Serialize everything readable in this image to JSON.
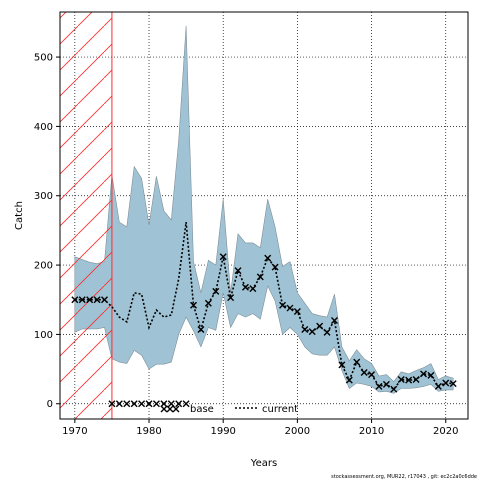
{
  "chart_data": {
    "type": "line",
    "xlabel": "Years",
    "ylabel": "Catch",
    "xlim": [
      1968,
      2023
    ],
    "ylim": [
      -22,
      565
    ],
    "x_ticks": [
      1970,
      1980,
      1990,
      2000,
      2010,
      2020
    ],
    "y_ticks": [
      0,
      100,
      200,
      300,
      400,
      500
    ],
    "grid": true,
    "legend_placement": "bottom-center",
    "shaded_period": [
      1968,
      1975
    ],
    "colors": {
      "band_fill": "#9fc3d4",
      "band_edge": "#7f8f99",
      "line": "#000000",
      "hatch": "#ff2a2a"
    },
    "band": {
      "x": [
        1970,
        1971,
        1972,
        1973,
        1974,
        1975,
        1976,
        1977,
        1978,
        1979,
        1980,
        1981,
        1982,
        1983,
        1984,
        1985,
        1986,
        1987,
        1988,
        1989,
        1990,
        1991,
        1992,
        1993,
        1994,
        1995,
        1996,
        1997,
        1998,
        1999,
        2000,
        2001,
        2002,
        2003,
        2004,
        2005,
        2006,
        2007,
        2008,
        2009,
        2010,
        2011,
        2012,
        2013,
        2014,
        2015,
        2016,
        2017,
        2018,
        2019,
        2020,
        2021
      ],
      "upper": [
        212,
        208,
        204,
        202,
        205,
        330,
        262,
        255,
        342,
        325,
        258,
        328,
        278,
        265,
        380,
        545,
        205,
        160,
        207,
        200,
        295,
        160,
        245,
        232,
        232,
        225,
        295,
        255,
        198,
        205,
        160,
        145,
        130,
        127,
        125,
        158,
        82,
        62,
        78,
        65,
        58,
        40,
        42,
        32,
        46,
        43,
        48,
        52,
        58,
        35,
        40,
        37
      ],
      "lower": [
        103,
        108,
        108,
        108,
        110,
        65,
        60,
        58,
        77,
        70,
        50,
        57,
        57,
        60,
        100,
        125,
        105,
        82,
        110,
        106,
        160,
        110,
        130,
        125,
        130,
        122,
        170,
        148,
        100,
        110,
        100,
        82,
        72,
        70,
        70,
        82,
        48,
        22,
        30,
        28,
        25,
        17,
        18,
        15,
        22,
        22,
        23,
        25,
        28,
        18,
        20,
        20
      ]
    },
    "series": [
      {
        "name": "base",
        "marker": "x",
        "x": [
          1970,
          1971,
          1972,
          1973,
          1974,
          1975,
          1976,
          1977,
          1978,
          1979,
          1980,
          1981,
          1982,
          1983,
          1984,
          1985,
          1986,
          1987,
          1988,
          1989,
          1990,
          1991,
          1992,
          1993,
          1994,
          1995,
          1996,
          1997,
          1998,
          1999,
          2000,
          2001,
          2002,
          2003,
          2004,
          2005,
          2006,
          2007,
          2008,
          2009,
          2010,
          2011,
          2012,
          2013,
          2014,
          2015,
          2016,
          2017,
          2018,
          2019,
          2020,
          2021
        ],
        "values": [
          150,
          150,
          150,
          150,
          150,
          0,
          0,
          0,
          0,
          0,
          0,
          0,
          0,
          0,
          0,
          0,
          142,
          107,
          145,
          162,
          212,
          153,
          192,
          168,
          166,
          183,
          210,
          197,
          142,
          138,
          133,
          107,
          104,
          112,
          103,
          120,
          56,
          34,
          60,
          45,
          42,
          25,
          28,
          21,
          35,
          34,
          35,
          43,
          41,
          25,
          30,
          29
        ]
      },
      {
        "name": "current",
        "style": "dotted",
        "x": [
          1970,
          1971,
          1972,
          1973,
          1974,
          1975,
          1976,
          1977,
          1978,
          1979,
          1980,
          1981,
          1982,
          1983,
          1984,
          1985,
          1986,
          1987,
          1988,
          1989,
          1990,
          1991,
          1992,
          1993,
          1994,
          1995,
          1996,
          1997,
          1998,
          1999,
          2000,
          2001,
          2002,
          2003,
          2004,
          2005,
          2006,
          2007,
          2008,
          2009,
          2010,
          2011,
          2012,
          2013,
          2014,
          2015,
          2016,
          2017,
          2018,
          2019,
          2020,
          2021
        ],
        "values": [
          150,
          150,
          150,
          150,
          150,
          140,
          125,
          118,
          160,
          158,
          110,
          135,
          125,
          128,
          180,
          262,
          142,
          107,
          145,
          162,
          212,
          153,
          192,
          168,
          166,
          183,
          210,
          197,
          142,
          138,
          133,
          107,
          104,
          112,
          103,
          120,
          56,
          34,
          60,
          45,
          42,
          25,
          28,
          21,
          35,
          34,
          35,
          43,
          41,
          25,
          30,
          29
        ]
      }
    ],
    "legend": [
      {
        "name": "base",
        "marker": "x",
        "label": "base"
      },
      {
        "name": "current",
        "style": "dotted",
        "label": "current"
      }
    ]
  },
  "footer_text": "stockassessment.org, MUR22, r17043 , git: ec2c2a0c6dde"
}
